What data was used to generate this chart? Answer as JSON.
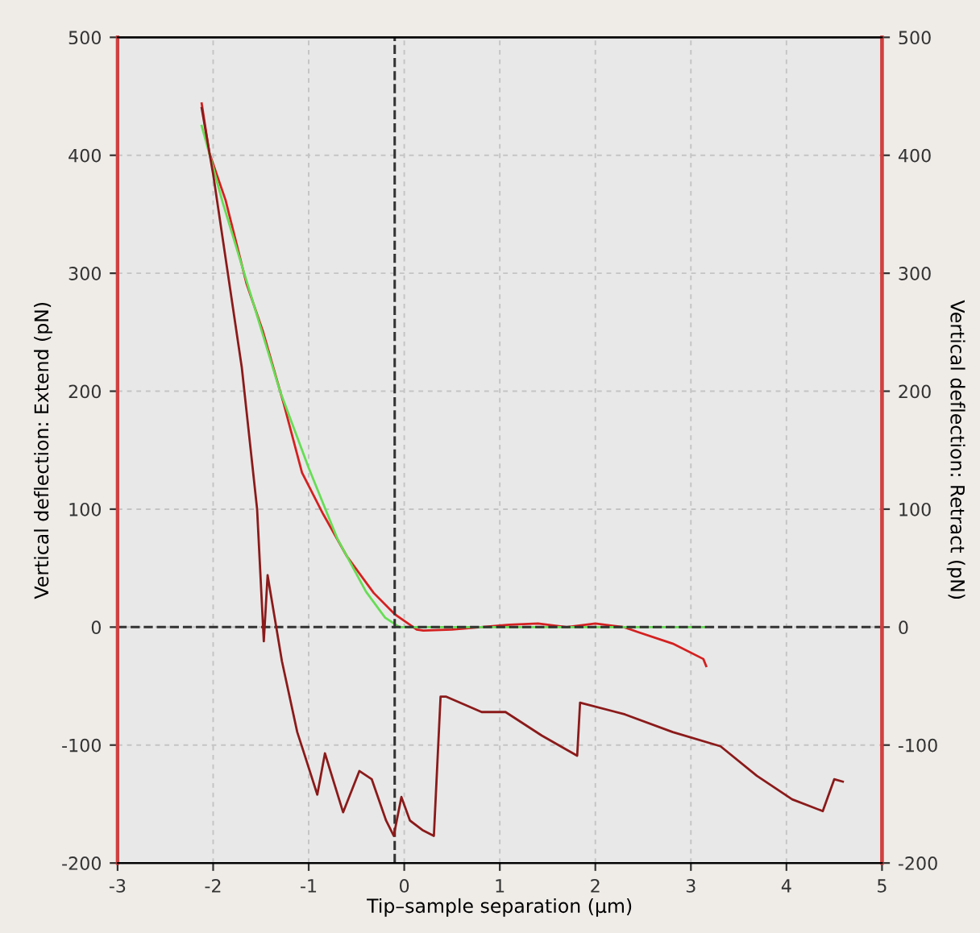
{
  "chart_data": {
    "type": "line",
    "xlabel": "Tip–sample separation (µm)",
    "ylabel": "Vertical deflection: Extend (pN)",
    "y2label": "Vertical deflection: Retract (pN)",
    "xlim": [
      -3,
      5
    ],
    "xticks": [
      -3,
      -2,
      -1,
      0,
      1,
      2,
      3,
      4,
      5
    ],
    "ylim": [
      -200,
      500
    ],
    "yticks": [
      -200,
      -100,
      0,
      100,
      200,
      300,
      400,
      500
    ],
    "y2lim": [
      -200,
      500
    ],
    "y2ticks": [
      -200,
      -100,
      0,
      100,
      200,
      300,
      400,
      500
    ],
    "grid": true,
    "line_style": "solid",
    "ref_lines": [
      {
        "axis": "x",
        "value": -0.1,
        "color": "#333333",
        "line_style": "dashed"
      },
      {
        "axis": "y",
        "value": 0,
        "color": "#333333",
        "line_style": "dashed"
      }
    ],
    "series": [
      {
        "color": "#8b1a1a",
        "axis": "y2",
        "x": [
          -2.12,
          -2.0,
          -1.7,
          -1.54,
          -1.47,
          -1.43,
          -1.28,
          -1.12,
          -1.06,
          -0.91,
          -0.83,
          -0.64,
          -0.47,
          -0.34,
          -0.19,
          -0.11,
          -0.03,
          0.06,
          0.19,
          0.31,
          0.38,
          0.44,
          0.81,
          1.06,
          1.44,
          1.81,
          1.84,
          2.31,
          2.81,
          3.31,
          3.69,
          4.06,
          4.38,
          4.5,
          4.59
        ],
        "values": [
          440,
          384,
          220,
          100,
          -12,
          44,
          -29,
          -89,
          -104,
          -142,
          -107,
          -157,
          -122,
          -129,
          -164,
          -177,
          -144,
          -164,
          -172,
          -177,
          -59,
          -59,
          -72,
          -72,
          -92,
          -109,
          -64,
          -74,
          -89,
          -101,
          -126,
          -146,
          -156,
          -129,
          -131
        ]
      },
      {
        "color": "#d42020",
        "x": [
          -2.12,
          -2.04,
          -1.87,
          -1.65,
          -1.48,
          -1.26,
          -1.07,
          -0.85,
          -0.6,
          -0.32,
          -0.1,
          0.13,
          0.2,
          0.5,
          0.8,
          1.1,
          1.4,
          1.7,
          2.0,
          2.3,
          2.44,
          2.81,
          3.13,
          3.16
        ],
        "values": [
          444,
          402,
          362,
          291,
          251,
          189,
          131,
          96,
          60,
          29,
          11,
          -2,
          -3,
          -2,
          0,
          2,
          3,
          0,
          3,
          0,
          -4,
          -14,
          -27,
          -33
        ]
      },
      {
        "color": "#66dd55",
        "x": [
          -2.12,
          -1.9,
          -1.6,
          -1.3,
          -1.0,
          -0.7,
          -0.4,
          -0.2,
          -0.05,
          0.5,
          1.5,
          2.5,
          3.15
        ],
        "values": [
          425,
          360,
          280,
          200,
          135,
          75,
          30,
          8,
          0,
          0,
          0,
          0,
          0
        ]
      }
    ]
  }
}
